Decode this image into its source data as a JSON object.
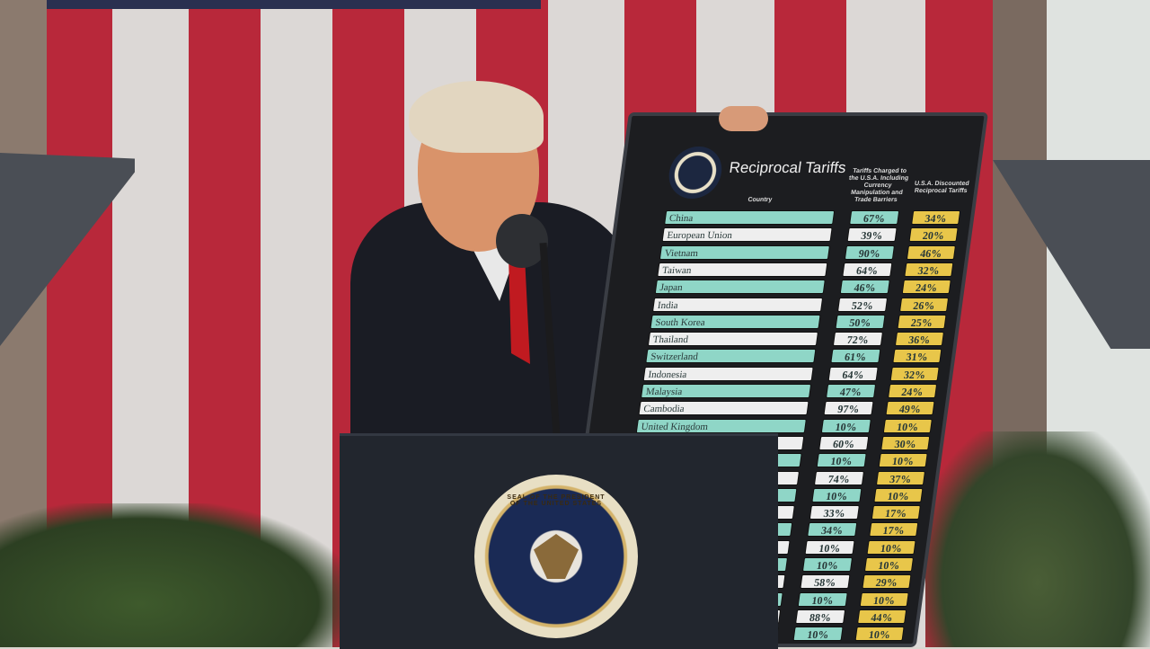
{
  "board": {
    "title": "Reciprocal Tariffs",
    "col_country": "Country",
    "col_charged": "Tariffs Charged to the U.S.A. Including Currency Manipulation and Trade Barriers",
    "col_discounted": "U.S.A. Discounted Reciprocal Tariffs",
    "rows": [
      {
        "country": "China",
        "charged": "67%",
        "discounted": "34%"
      },
      {
        "country": "European Union",
        "charged": "39%",
        "discounted": "20%"
      },
      {
        "country": "Vietnam",
        "charged": "90%",
        "discounted": "46%"
      },
      {
        "country": "Taiwan",
        "charged": "64%",
        "discounted": "32%"
      },
      {
        "country": "Japan",
        "charged": "46%",
        "discounted": "24%"
      },
      {
        "country": "India",
        "charged": "52%",
        "discounted": "26%"
      },
      {
        "country": "South Korea",
        "charged": "50%",
        "discounted": "25%"
      },
      {
        "country": "Thailand",
        "charged": "72%",
        "discounted": "36%"
      },
      {
        "country": "Switzerland",
        "charged": "61%",
        "discounted": "31%"
      },
      {
        "country": "Indonesia",
        "charged": "64%",
        "discounted": "32%"
      },
      {
        "country": "Malaysia",
        "charged": "47%",
        "discounted": "24%"
      },
      {
        "country": "Cambodia",
        "charged": "97%",
        "discounted": "49%"
      },
      {
        "country": "United Kingdom",
        "charged": "10%",
        "discounted": "10%"
      },
      {
        "country": "",
        "charged": "60%",
        "discounted": "30%"
      },
      {
        "country": "",
        "charged": "10%",
        "discounted": "10%"
      },
      {
        "country": "",
        "charged": "74%",
        "discounted": "37%"
      },
      {
        "country": "",
        "charged": "10%",
        "discounted": "10%"
      },
      {
        "country": "",
        "charged": "33%",
        "discounted": "17%"
      },
      {
        "country": "",
        "charged": "34%",
        "discounted": "17%"
      },
      {
        "country": "",
        "charged": "10%",
        "discounted": "10%"
      },
      {
        "country": "",
        "charged": "10%",
        "discounted": "10%"
      },
      {
        "country": "",
        "charged": "58%",
        "discounted": "29%"
      },
      {
        "country": "",
        "charged": "10%",
        "discounted": "10%"
      },
      {
        "country": "",
        "charged": "88%",
        "discounted": "44%"
      },
      {
        "country": "",
        "charged": "10%",
        "discounted": "10%"
      }
    ]
  },
  "lectern": {
    "seal_text": "SEAL OF THE PRESIDENT OF THE UNITED STATES"
  },
  "colors": {
    "teal": "#8fd6c7",
    "yellow": "#e8c64a",
    "flag_red": "#b8283a",
    "lectern": "#22262e"
  }
}
